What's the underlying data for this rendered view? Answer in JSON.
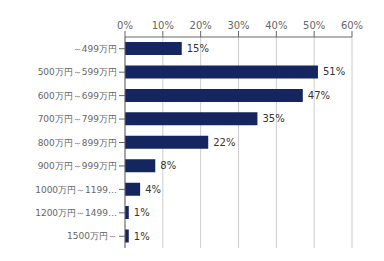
{
  "chart_data": {
    "type": "bar",
    "orientation": "horizontal",
    "categories": [
      "～499万円",
      "500万円～599万円",
      "600万円～699万円",
      "700万円～799万円",
      "800万円～899万円",
      "900万円～999万円",
      "1000万円～1199…",
      "1200万円～1499…",
      "1500万円～"
    ],
    "values": [
      15,
      51,
      47,
      35,
      22,
      8,
      4,
      1,
      1
    ],
    "value_labels": [
      "15%",
      "51%",
      "47%",
      "35%",
      "22%",
      "8%",
      "4%",
      "1%",
      "1%"
    ],
    "data_labels": true,
    "color": "#152560",
    "xlim": [
      0,
      60
    ],
    "xticks": [
      {
        "value": 0,
        "label": "0%"
      },
      {
        "value": 10,
        "label": "10%"
      },
      {
        "value": 20,
        "label": "20%"
      },
      {
        "value": 30,
        "label": "30%"
      },
      {
        "value": 40,
        "label": "40%"
      },
      {
        "value": 50,
        "label": "50%"
      },
      {
        "value": 60,
        "label": "60%"
      }
    ],
    "grid": true
  }
}
